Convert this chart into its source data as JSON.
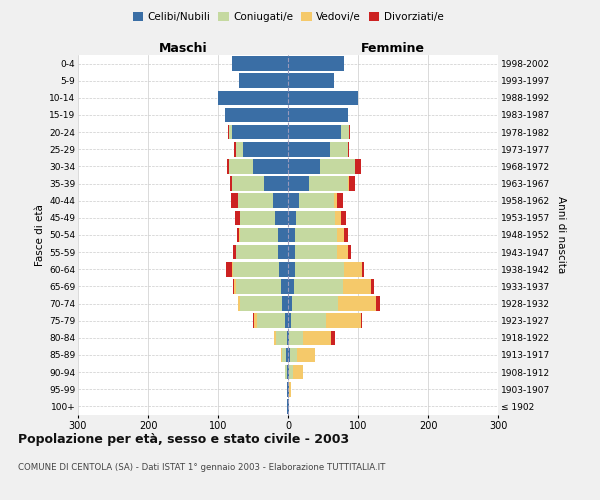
{
  "age_groups": [
    "100+",
    "95-99",
    "90-94",
    "85-89",
    "80-84",
    "75-79",
    "70-74",
    "65-69",
    "60-64",
    "55-59",
    "50-54",
    "45-49",
    "40-44",
    "35-39",
    "30-34",
    "25-29",
    "20-24",
    "15-19",
    "10-14",
    "5-9",
    "0-4"
  ],
  "birth_years": [
    "≤ 1902",
    "1903-1907",
    "1908-1912",
    "1913-1917",
    "1918-1922",
    "1923-1927",
    "1928-1932",
    "1933-1937",
    "1938-1942",
    "1943-1947",
    "1948-1952",
    "1953-1957",
    "1958-1962",
    "1963-1967",
    "1968-1972",
    "1973-1977",
    "1978-1982",
    "1983-1987",
    "1988-1992",
    "1993-1997",
    "1998-2002"
  ],
  "males": {
    "celibi": [
      1,
      1,
      2,
      3,
      2,
      5,
      8,
      10,
      13,
      14,
      14,
      18,
      22,
      35,
      50,
      65,
      80,
      90,
      100,
      70,
      80
    ],
    "coniugati": [
      0,
      0,
      2,
      5,
      15,
      40,
      60,
      65,
      65,
      60,
      55,
      50,
      50,
      45,
      35,
      10,
      5,
      0,
      0,
      0,
      0
    ],
    "vedovi": [
      0,
      0,
      0,
      2,
      3,
      4,
      3,
      2,
      2,
      1,
      1,
      0,
      0,
      0,
      0,
      0,
      0,
      0,
      0,
      0,
      0
    ],
    "divorziati": [
      0,
      0,
      0,
      0,
      0,
      1,
      1,
      2,
      8,
      4,
      3,
      8,
      10,
      3,
      2,
      2,
      1,
      0,
      0,
      0,
      0
    ]
  },
  "females": {
    "nubili": [
      1,
      1,
      2,
      3,
      2,
      4,
      6,
      8,
      10,
      10,
      10,
      12,
      15,
      30,
      45,
      60,
      75,
      85,
      100,
      65,
      80
    ],
    "coniugate": [
      0,
      1,
      5,
      10,
      20,
      50,
      65,
      70,
      70,
      60,
      60,
      55,
      50,
      55,
      50,
      25,
      12,
      0,
      0,
      0,
      0
    ],
    "vedove": [
      0,
      2,
      15,
      25,
      40,
      50,
      55,
      40,
      25,
      15,
      10,
      8,
      5,
      2,
      1,
      0,
      0,
      0,
      0,
      0,
      0
    ],
    "divorziate": [
      0,
      0,
      0,
      0,
      5,
      1,
      5,
      5,
      4,
      5,
      5,
      8,
      8,
      8,
      8,
      2,
      1,
      0,
      0,
      0,
      0
    ]
  },
  "colors": {
    "celibi_nubili": "#3a6ea5",
    "coniugati": "#c5d9a0",
    "vedovi": "#f5c96a",
    "divorziati": "#cc2222"
  },
  "title": "Popolazione per età, sesso e stato civile - 2003",
  "subtitle": "COMUNE DI CENTOLA (SA) - Dati ISTAT 1° gennaio 2003 - Elaborazione TUTTITALIA.IT",
  "xlabel_left": "Maschi",
  "xlabel_right": "Femmine",
  "ylabel_left": "Fasce di età",
  "ylabel_right": "Anni di nascita",
  "xlim": 300,
  "bg_color": "#f0f0f0",
  "plot_bg": "#ffffff"
}
